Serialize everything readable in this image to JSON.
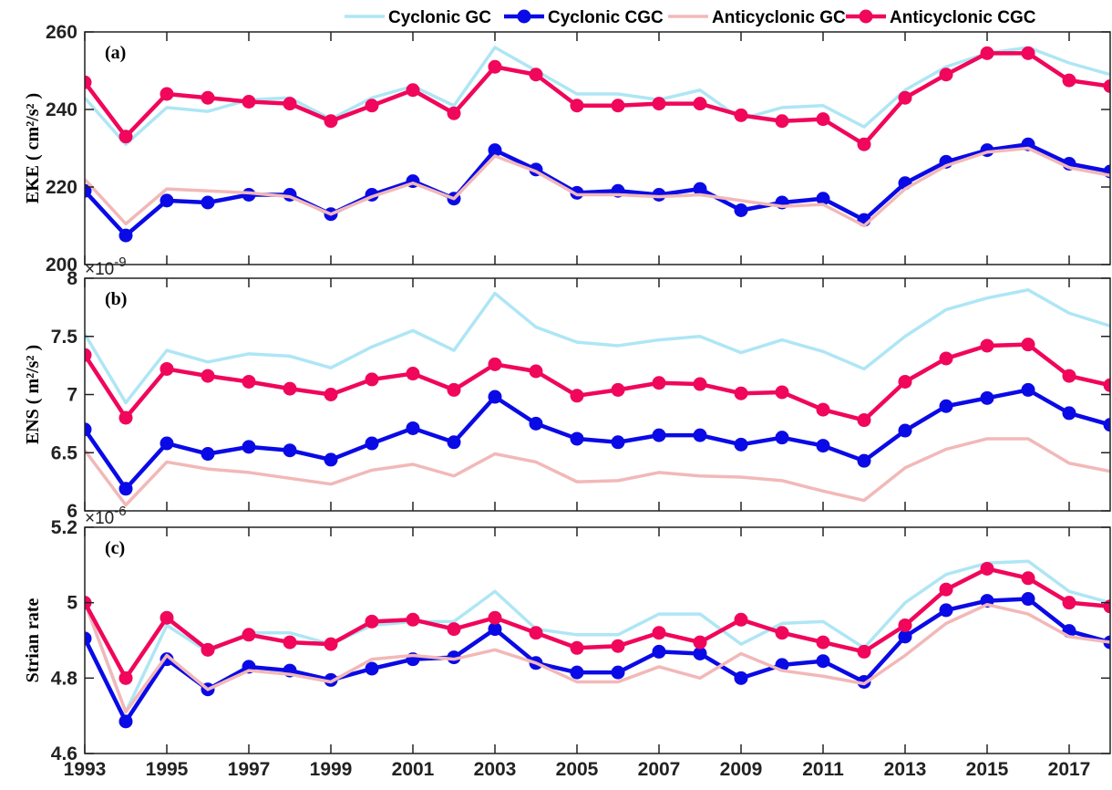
{
  "chart_data": [
    {
      "type": "line",
      "panel_label": "(a)",
      "ylabel": "EKE ( cm²/s² )",
      "x": [
        1993,
        1994,
        1995,
        1996,
        1997,
        1998,
        1999,
        2000,
        2001,
        2002,
        2003,
        2004,
        2005,
        2006,
        2007,
        2008,
        2009,
        2010,
        2011,
        2012,
        2013,
        2014,
        2015,
        2016,
        2017,
        2018
      ],
      "xlim": [
        1993,
        2018
      ],
      "ylim": [
        200,
        260
      ],
      "yticks": [
        200,
        220,
        240,
        260
      ],
      "legend": "top",
      "series": [
        {
          "name": "Cyclonic GC",
          "color": "#aee6f5",
          "markers": false,
          "values": [
            243,
            231,
            240.5,
            239.5,
            242.5,
            243,
            237.5,
            243,
            246,
            241,
            256,
            250,
            244,
            244,
            242.5,
            245,
            237.5,
            240.5,
            241,
            235.5,
            245,
            251,
            254.5,
            256,
            252,
            249
          ]
        },
        {
          "name": "Cyclonic CGC",
          "color": "#0a0ae6",
          "markers": true,
          "values": [
            219,
            207.5,
            216.5,
            216,
            218,
            218,
            213,
            218,
            221.5,
            217,
            229.5,
            224.5,
            218.5,
            219,
            218,
            219.5,
            214,
            216,
            217,
            211.5,
            221,
            226.5,
            229.5,
            231,
            226,
            224
          ]
        },
        {
          "name": "Anticyclonic GC",
          "color": "#f2b8b8",
          "markers": false,
          "values": [
            222,
            210.5,
            219.5,
            219,
            218.5,
            217.5,
            213,
            217.5,
            221,
            217,
            228,
            224,
            218,
            218,
            217.5,
            218,
            216.5,
            215,
            215.5,
            210,
            219.5,
            225.5,
            229,
            230,
            225,
            223
          ]
        },
        {
          "name": "Anticyclonic CGC",
          "color": "#f0065a",
          "markers": true,
          "values": [
            247,
            233,
            244,
            243,
            242,
            241.5,
            237,
            241,
            245,
            239,
            251,
            249,
            241,
            241,
            241.5,
            241.5,
            238.5,
            237,
            237.5,
            231,
            243,
            249,
            254.5,
            254.5,
            247.5,
            246
          ]
        }
      ]
    },
    {
      "type": "line",
      "panel_label": "(b)",
      "ylabel": "ENS ( m²/s² )",
      "multiplier": "×10",
      "multiplier_exponent": "-9",
      "x": [
        1993,
        1994,
        1995,
        1996,
        1997,
        1998,
        1999,
        2000,
        2001,
        2002,
        2003,
        2004,
        2005,
        2006,
        2007,
        2008,
        2009,
        2010,
        2011,
        2012,
        2013,
        2014,
        2015,
        2016,
        2017,
        2018
      ],
      "xlim": [
        1993,
        2018
      ],
      "ylim": [
        6,
        8
      ],
      "yticks": [
        6,
        6.5,
        7,
        7.5,
        8
      ],
      "series": [
        {
          "color": "#aee6f5",
          "markers": false,
          "values": [
            7.52,
            6.93,
            7.38,
            7.28,
            7.35,
            7.33,
            7.23,
            7.41,
            7.55,
            7.38,
            7.87,
            7.58,
            7.45,
            7.42,
            7.47,
            7.5,
            7.36,
            7.47,
            7.37,
            7.22,
            7.5,
            7.73,
            7.83,
            7.9,
            7.7,
            7.59
          ]
        },
        {
          "color": "#0a0ae6",
          "markers": true,
          "values": [
            6.7,
            6.19,
            6.58,
            6.49,
            6.55,
            6.52,
            6.44,
            6.58,
            6.71,
            6.59,
            6.98,
            6.75,
            6.62,
            6.59,
            6.65,
            6.65,
            6.57,
            6.63,
            6.56,
            6.43,
            6.69,
            6.9,
            6.97,
            7.04,
            6.84,
            6.74
          ]
        },
        {
          "color": "#f2b8b8",
          "markers": false,
          "values": [
            6.52,
            6.05,
            6.42,
            6.36,
            6.33,
            6.28,
            6.23,
            6.35,
            6.4,
            6.3,
            6.49,
            6.42,
            6.25,
            6.26,
            6.33,
            6.3,
            6.29,
            6.26,
            6.17,
            6.09,
            6.37,
            6.53,
            6.62,
            6.62,
            6.41,
            6.34
          ]
        },
        {
          "color": "#f0065a",
          "markers": true,
          "values": [
            7.34,
            6.8,
            7.22,
            7.16,
            7.11,
            7.05,
            7,
            7.13,
            7.18,
            7.04,
            7.26,
            7.2,
            6.99,
            7.04,
            7.1,
            7.09,
            7.01,
            7.02,
            6.87,
            6.78,
            7.11,
            7.31,
            7.42,
            7.43,
            7.16,
            7.08
          ]
        }
      ]
    },
    {
      "type": "line",
      "panel_label": "(c)",
      "ylabel": "Strian rate",
      "multiplier": "×10",
      "multiplier_exponent": "-6",
      "x": [
        1993,
        1994,
        1995,
        1996,
        1997,
        1998,
        1999,
        2000,
        2001,
        2002,
        2003,
        2004,
        2005,
        2006,
        2007,
        2008,
        2009,
        2010,
        2011,
        2012,
        2013,
        2014,
        2015,
        2016,
        2017,
        2018
      ],
      "xlim": [
        1993,
        2018
      ],
      "xticks": [
        1993,
        1995,
        1997,
        1999,
        2001,
        2003,
        2005,
        2007,
        2009,
        2011,
        2013,
        2015,
        2017
      ],
      "ylim": [
        4.6,
        5.2
      ],
      "yticks": [
        4.6,
        4.8,
        5,
        5.2
      ],
      "series": [
        {
          "color": "#aee6f5",
          "markers": false,
          "values": [
            5,
            4.71,
            4.94,
            4.87,
            4.92,
            4.92,
            4.89,
            4.94,
            4.95,
            4.95,
            5.03,
            4.93,
            4.915,
            4.915,
            4.97,
            4.97,
            4.89,
            4.945,
            4.95,
            4.88,
            5,
            5.075,
            5.105,
            5.11,
            5.03,
            5
          ]
        },
        {
          "color": "#0a0ae6",
          "markers": true,
          "values": [
            4.905,
            4.685,
            4.85,
            4.77,
            4.83,
            4.82,
            4.795,
            4.825,
            4.85,
            4.855,
            4.93,
            4.84,
            4.815,
            4.815,
            4.87,
            4.865,
            4.8,
            4.835,
            4.845,
            4.79,
            4.91,
            4.98,
            5.005,
            5.01,
            4.925,
            4.895
          ]
        },
        {
          "color": "#f2b8b8",
          "markers": false,
          "values": [
            5,
            4.71,
            4.86,
            4.77,
            4.82,
            4.81,
            4.79,
            4.85,
            4.86,
            4.85,
            4.875,
            4.84,
            4.79,
            4.79,
            4.83,
            4.8,
            4.865,
            4.82,
            4.805,
            4.785,
            4.86,
            4.945,
            4.995,
            4.97,
            4.91,
            4.895
          ]
        },
        {
          "color": "#f0065a",
          "markers": true,
          "values": [
            5,
            4.8,
            4.96,
            4.875,
            4.915,
            4.895,
            4.89,
            4.95,
            4.955,
            4.93,
            4.96,
            4.92,
            4.88,
            4.885,
            4.92,
            4.895,
            4.955,
            4.92,
            4.895,
            4.87,
            4.94,
            5.035,
            5.09,
            5.065,
            5,
            4.99
          ]
        }
      ]
    }
  ]
}
